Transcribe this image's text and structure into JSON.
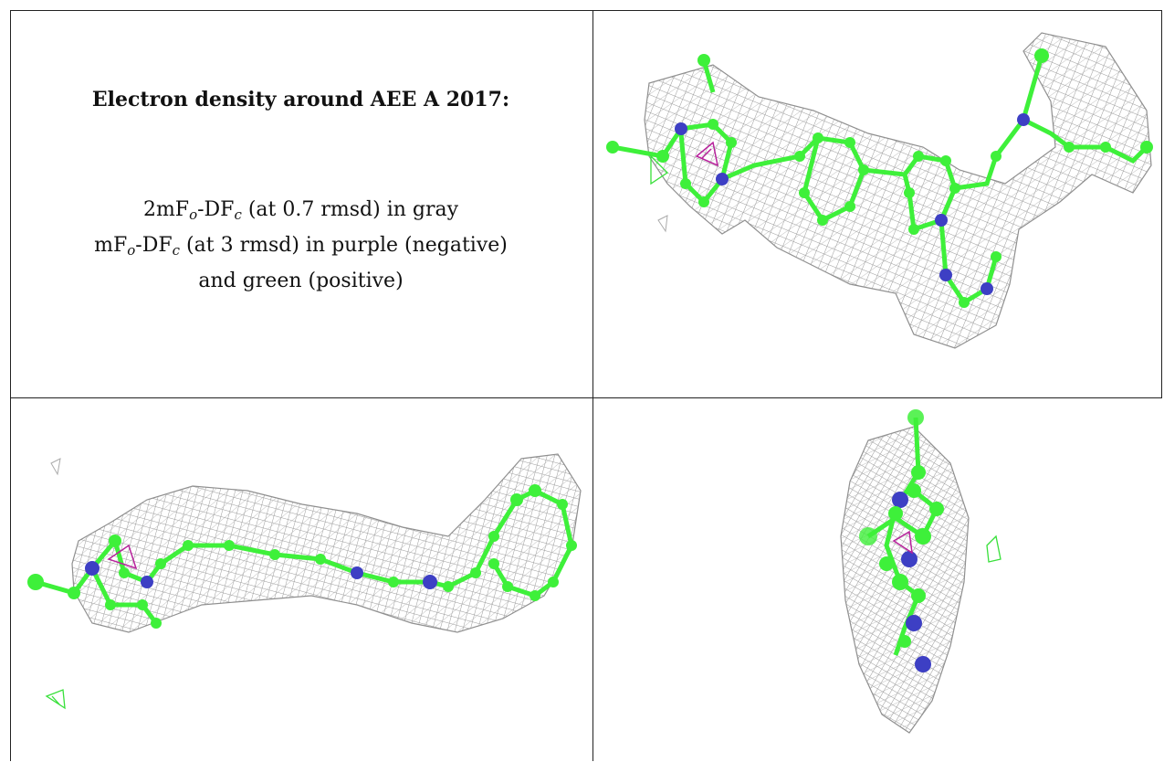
{
  "caption": {
    "title": "Electron density around AEE A 2017:",
    "line1": {
      "pre": "2mF",
      "o": "o",
      "mid": "-DF",
      "c": "c",
      "post": " (at 0.7 rmsd) in gray"
    },
    "line2": {
      "pre": "mF",
      "o": "o",
      "mid": "-DF",
      "c": "c",
      "post": " (at 3 rmsd) in purple (negative)"
    },
    "line3": "and green (positive)"
  },
  "colors": {
    "mesh": "#8f8f8f",
    "carbon": "#3ef03a",
    "nitrogen": "#3d3fc4",
    "negative_density": "#b8229c",
    "positive_density": "#38e03a",
    "border": "#222222"
  },
  "panels": [
    {
      "name": "caption-panel"
    },
    {
      "name": "density-view-top-right"
    },
    {
      "name": "density-view-bottom-left"
    },
    {
      "name": "density-view-bottom-right"
    }
  ]
}
